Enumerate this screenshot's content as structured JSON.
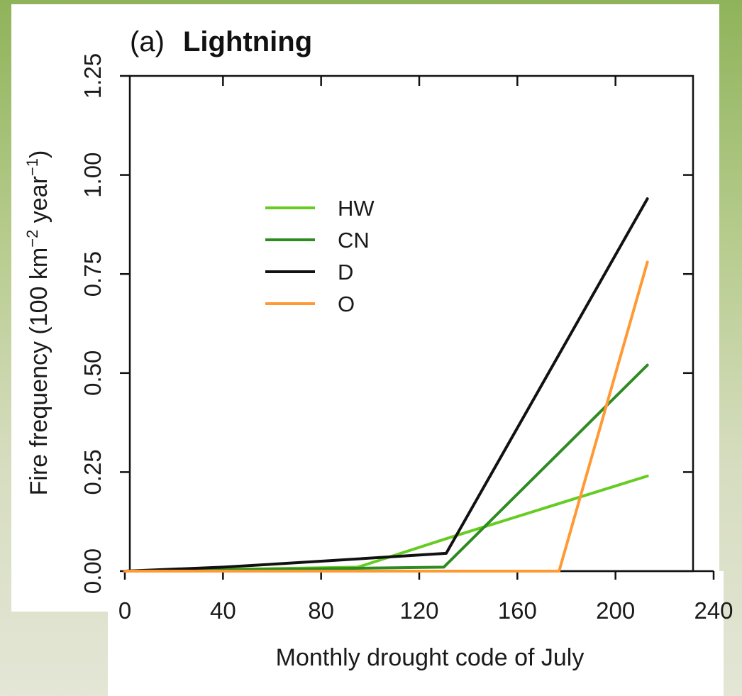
{
  "chart_data": {
    "type": "line",
    "title_prefix": "(a)",
    "title": "Lightning",
    "xlabel": "Monthly drought code of July",
    "ylabel_parts": {
      "main": "Fire frequency (100 km",
      "exp1": "−2",
      "mid": " year",
      "exp2": "−1",
      "end": ")"
    },
    "xlim": [
      0,
      240
    ],
    "ylim": [
      0,
      1.25
    ],
    "xticks": [
      "0",
      "40",
      "80",
      "120",
      "160",
      "200",
      "240"
    ],
    "yticks": [
      "0.00",
      "0.25",
      "0.50",
      "0.75",
      "1.00",
      "1.25"
    ],
    "grid": false,
    "legend_position": "upper-left",
    "series": [
      {
        "name": "HW",
        "color": "#66cc22",
        "x": [
          0,
          95,
          130,
          213
        ],
        "y": [
          0,
          0.01,
          0.08,
          0.24
        ]
      },
      {
        "name": "CN",
        "color": "#2e8b22",
        "x": [
          0,
          130,
          213
        ],
        "y": [
          0,
          0.01,
          0.52
        ]
      },
      {
        "name": "D",
        "color": "#111111",
        "x": [
          0,
          40,
          80,
          131,
          213
        ],
        "y": [
          0,
          0.01,
          0.025,
          0.045,
          0.94
        ]
      },
      {
        "name": "O",
        "color": "#ff9933",
        "x": [
          0,
          177,
          213
        ],
        "y": [
          0,
          0,
          0.78
        ]
      }
    ]
  }
}
